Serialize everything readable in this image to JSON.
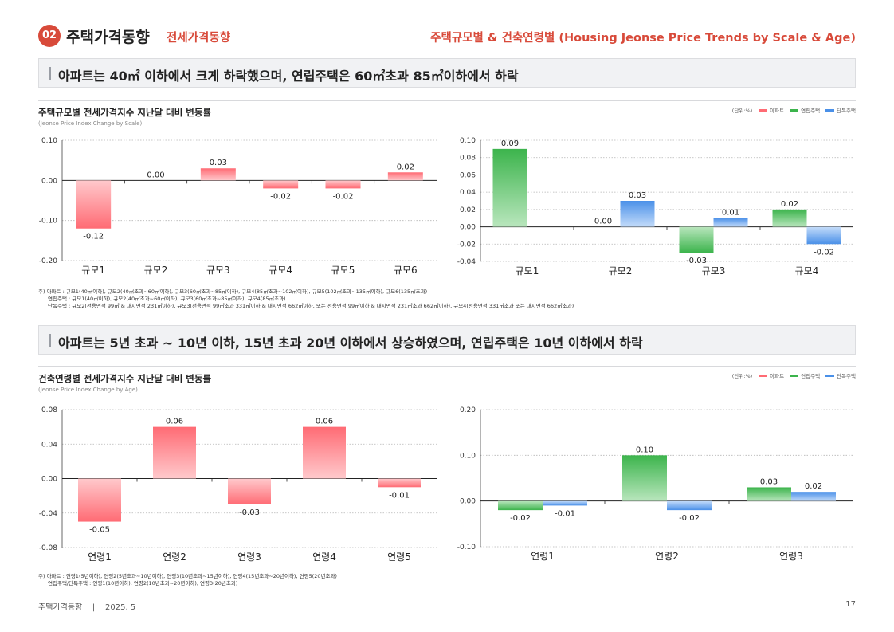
{
  "header": {
    "section_number": "02",
    "title": "주택가격동향",
    "subtitle": "전세가격동향",
    "right_title": "주택규모별 & 건축연령별 (Housing Jeonse Price Trends by Scale & Age)"
  },
  "section1": {
    "headline": "아파트는 40㎡ 이하에서 크게 하락했으며, 연립주택은 60㎡초과 85㎡이하에서 하락",
    "chart_title": "주택규모별 전세가격지수 지난달 대비 변동률",
    "chart_subtitle": "(Jeonse Price Index Change by Scale)",
    "notes": [
      "주) 아파트 : 규모1(40㎡이하), 규모2(40㎡초과~60㎡이하), 규모3(60㎡초과~85㎡이하), 규모4(85㎡초과~102㎡이하), 규모5(102㎡초과~135㎡이하), 규모6(135㎡초과)",
      "연립주택 : 규모1(40㎡이하), 규모2(40㎡초과~60㎡이하), 규모3(60㎡초과~85㎡이하), 규모4(85㎡초과)",
      "단독주택 : 규모2(전용면적 99㎡ & 대지면적 231㎡이하), 규모3(전용면적 99㎡초과 331㎡이하 & 대지면적 662㎡이하, 또는 전용면적 99㎡이하 & 대지면적 231㎡초과 662㎡이하), 규모4(전용면적 331㎡초과 또는 대지면적 662㎡초과)"
    ]
  },
  "section2": {
    "headline": "아파트는 5년 초과 ~ 10년 이하, 15년 초과 20년 이하에서 상승하였으며, 연립주택은 10년 이하에서 하락",
    "chart_title": "건축연령별 전세가격지수 지난달 대비 변동률",
    "chart_subtitle": "(Jeonse Price Index Change by Age)",
    "notes": [
      "주) 아파트 : 연령1(5년이하), 연령2(5년초과~10년이하), 연령3(10년초과~15년이하), 연령4(15년초과~20년이하), 연령5(20년초과)",
      "연립주택/단독주택 : 연령1(10년이하), 연령2(10년초과~20년이하), 연령3(20년초과)"
    ]
  },
  "legend": {
    "unit": "(단위:%)",
    "items": [
      "아파트",
      "연립주택",
      "단독주택"
    ]
  },
  "colors": {
    "accent": "#d84a3a",
    "apartment": "#ff6b74",
    "row_house": "#3cb44c",
    "detached": "#4a90e8"
  },
  "chart_data": [
    {
      "type": "bar",
      "categories": [
        "규모1",
        "규모2",
        "규모3",
        "규모4",
        "규모5",
        "규모6"
      ],
      "series": [
        {
          "name": "아파트",
          "values": [
            -0.12,
            0.0,
            0.03,
            -0.02,
            -0.02,
            0.02
          ]
        }
      ],
      "value_labels": [
        "-0.12",
        "0.00",
        "0.03",
        "-0.02",
        "-0.02",
        "0.02"
      ],
      "ylim": [
        -0.2,
        0.1
      ],
      "yticks": [
        "0.10",
        "0.00",
        "-0.10",
        "-0.20"
      ]
    },
    {
      "type": "bar",
      "categories": [
        "규모1",
        "규모2",
        "규모3",
        "규모4"
      ],
      "series": [
        {
          "name": "연립주택",
          "values": [
            0.09,
            0.0,
            -0.03,
            0.02
          ],
          "labels": [
            "0.09",
            "0.00",
            "-0.03",
            "0.02"
          ]
        },
        {
          "name": "단독주택",
          "values": [
            null,
            0.03,
            0.01,
            -0.02
          ],
          "labels": [
            "",
            "0.03",
            "0.01",
            "-0.02"
          ]
        }
      ],
      "ylim": [
        -0.04,
        0.1
      ],
      "yticks": [
        "0.10",
        "0.08",
        "0.06",
        "0.04",
        "0.02",
        "0.00",
        "-0.02",
        "-0.04"
      ]
    },
    {
      "type": "bar",
      "categories": [
        "연령1",
        "연령2",
        "연령3",
        "연령4",
        "연령5"
      ],
      "series": [
        {
          "name": "아파트",
          "values": [
            -0.05,
            0.06,
            -0.03,
            0.06,
            -0.01
          ]
        }
      ],
      "value_labels": [
        "-0.05",
        "0.06",
        "-0.03",
        "0.06",
        "-0.01"
      ],
      "ylim": [
        -0.08,
        0.08
      ],
      "yticks": [
        "0.08",
        "0.04",
        "0.00",
        "-0.04",
        "-0.08"
      ]
    },
    {
      "type": "bar",
      "categories": [
        "연령1",
        "연령2",
        "연령3"
      ],
      "series": [
        {
          "name": "연립주택",
          "values": [
            -0.02,
            0.1,
            0.03
          ],
          "labels": [
            "-0.02",
            "0.10",
            "0.03"
          ]
        },
        {
          "name": "단독주택",
          "values": [
            -0.01,
            -0.02,
            0.02
          ],
          "labels": [
            "-0.01",
            "-0.02",
            "0.02"
          ]
        }
      ],
      "ylim": [
        -0.1,
        0.2
      ],
      "yticks": [
        "0.20",
        "0.10",
        "0.00",
        "-0.10"
      ]
    }
  ],
  "footer": {
    "left": "주택가격동향    |    2025. 5",
    "page": "17"
  }
}
